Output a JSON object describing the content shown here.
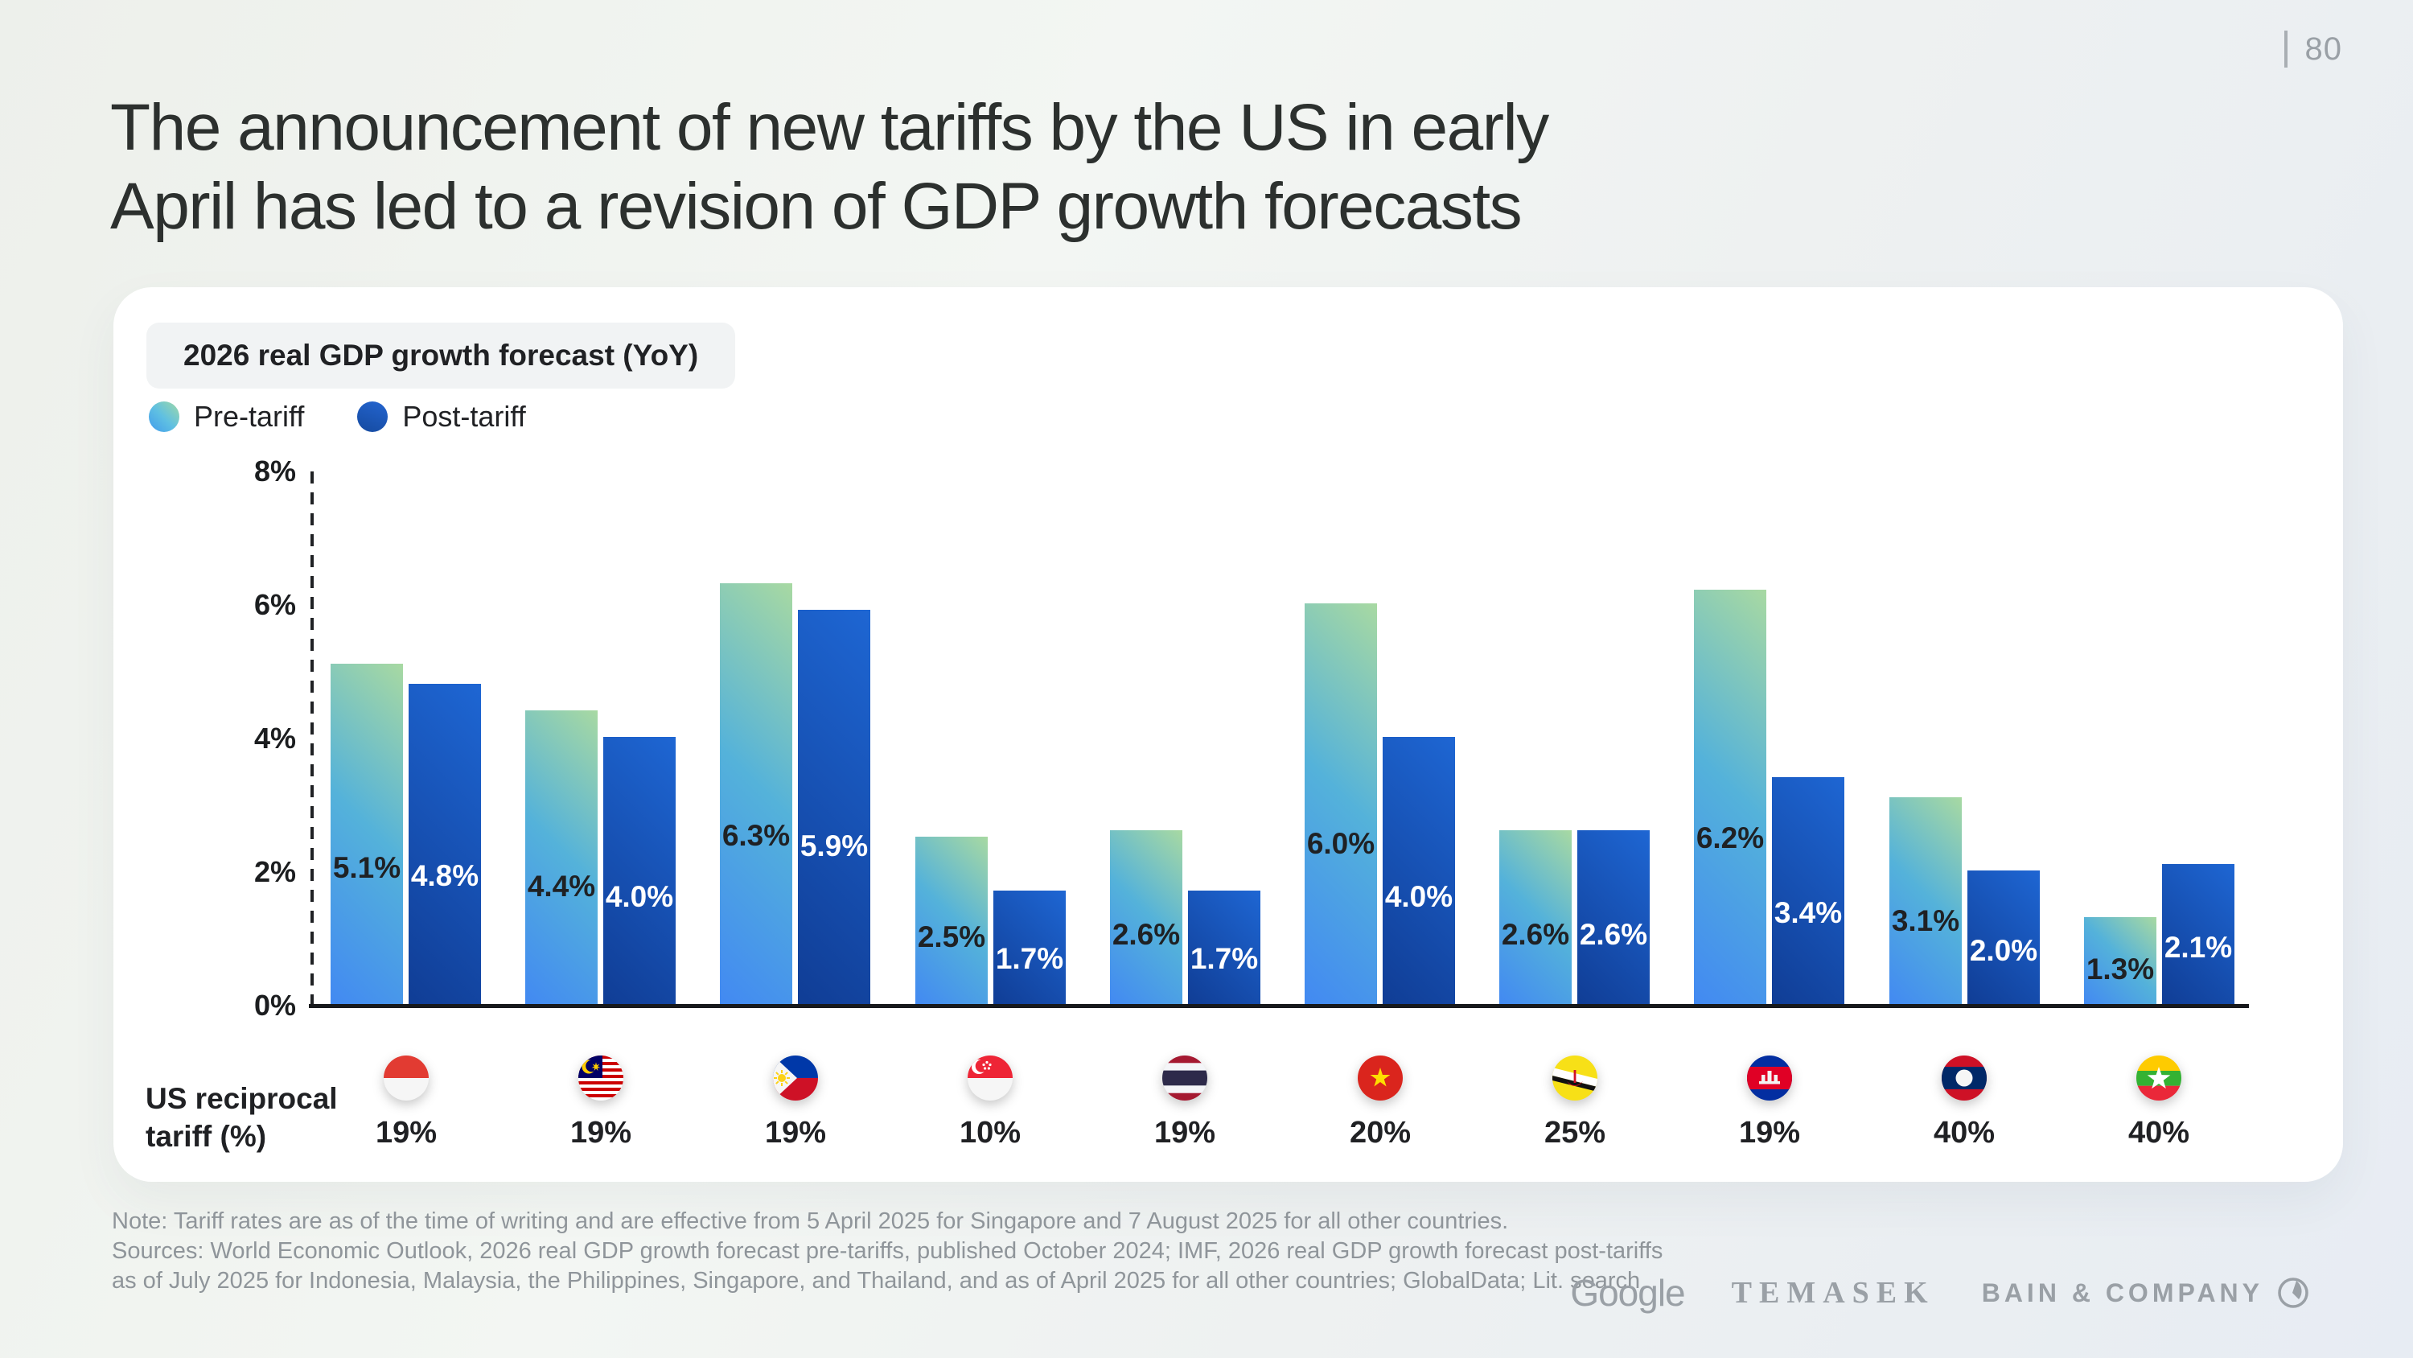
{
  "page": {
    "number": "80",
    "title_line1": "The announcement of new tariffs by the US in early",
    "title_line2": "April has led to a revision of GDP growth forecasts"
  },
  "chart_data": {
    "type": "bar",
    "title": "2026 real GDP growth forecast (YoY)",
    "legend": [
      "Pre-tariff",
      "Post-tariff"
    ],
    "legend_position": "top-left",
    "grid": false,
    "ylim": [
      0,
      8
    ],
    "yticks": [
      "0%",
      "2%",
      "4%",
      "6%",
      "8%"
    ],
    "categories": [
      "Indonesia",
      "Malaysia",
      "Philippines",
      "Singapore",
      "Thailand",
      "Vietnam",
      "Brunei",
      "Cambodia",
      "Laos",
      "Myanmar"
    ],
    "series": [
      {
        "name": "Pre-tariff",
        "values": [
          5.1,
          4.4,
          6.3,
          2.5,
          2.6,
          6.0,
          2.6,
          6.2,
          3.1,
          1.3
        ]
      },
      {
        "name": "Post-tariff",
        "values": [
          4.8,
          4.0,
          5.9,
          1.7,
          1.7,
          4.0,
          2.6,
          3.4,
          2.0,
          2.1
        ]
      }
    ],
    "value_suffix": "%",
    "tariff_row_label_line1": "US reciprocal",
    "tariff_row_label_line2": "tariff (%)",
    "tariffs": [
      "19%",
      "19%",
      "19%",
      "10%",
      "19%",
      "20%",
      "25%",
      "19%",
      "40%",
      "40%"
    ]
  },
  "colors": {
    "pre_bar_gradient": [
      "#4289f2",
      "#54b2da",
      "#a8d9a2"
    ],
    "post_bar_gradient": [
      "#103d95",
      "#1e66d3"
    ],
    "axis": "#17191c",
    "value_label_dark": "#1f2124",
    "value_label_light": "#ffffff",
    "card_background": "#ffffff",
    "badge_background": "#f1f3f4",
    "note_gray": "#8f959a",
    "logo_gray": "#9aa0a6"
  },
  "footer": {
    "note_lines": [
      "Note: Tariff rates are as of the time of writing and are effective from 5 April 2025 for Singapore and 7 August 2025 for all other countries.",
      "Sources: World Economic Outlook, 2026 real GDP growth forecast pre-tariffs, published October 2024; IMF, 2026 real GDP growth forecast post-tariffs",
      "as of July 2025 for Indonesia, Malaysia, the Philippines, Singapore, and Thailand, and as of April 2025 for all other countries; GlobalData; Lit. search"
    ],
    "logos": {
      "google": "Google",
      "temasek": "TEMASEK",
      "bain": "BAIN & COMPANY"
    }
  }
}
